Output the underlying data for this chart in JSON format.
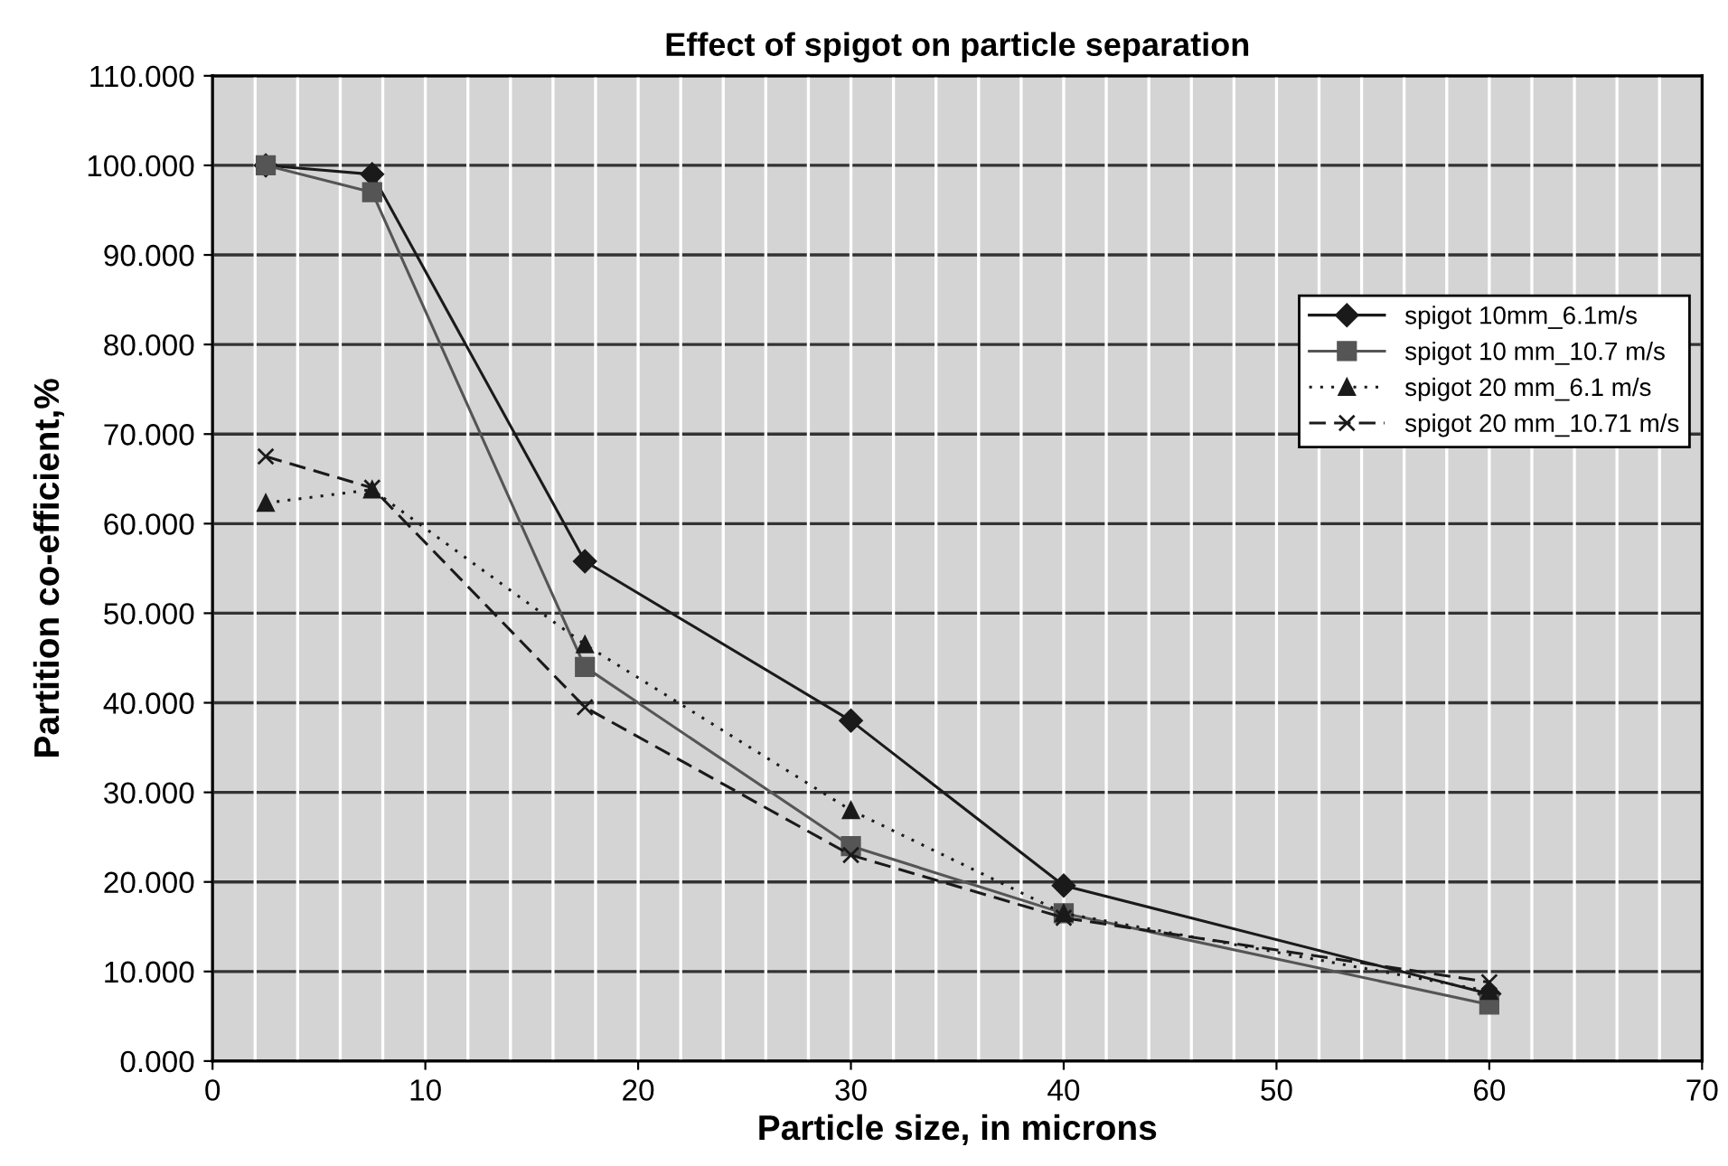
{
  "chart_data": {
    "type": "line",
    "title": "Effect of spigot on particle separation",
    "xlabel": "Particle size, in microns",
    "ylabel": "Partition co-efficient,%",
    "xlim": [
      0,
      70
    ],
    "xticks": [
      0,
      {
        "value": 2,
        "label": null
      },
      {
        "value": 4,
        "label": null
      },
      {
        "value": 6,
        "label": null
      },
      {
        "value": 8,
        "label": null
      },
      10,
      {
        "value": 12,
        "label": null
      },
      {
        "value": 14,
        "label": null
      },
      {
        "value": 16,
        "label": null
      },
      {
        "value": 18,
        "label": null
      },
      20,
      {
        "value": 22,
        "label": null
      },
      {
        "value": 24,
        "label": null
      },
      {
        "value": 26,
        "label": null
      },
      {
        "value": 28,
        "label": null
      },
      30,
      {
        "value": 32,
        "label": null
      },
      {
        "value": 34,
        "label": null
      },
      {
        "value": 36,
        "label": null
      },
      {
        "value": 38,
        "label": null
      },
      40,
      {
        "value": 42,
        "label": null
      },
      {
        "value": 44,
        "label": null
      },
      {
        "value": 46,
        "label": null
      },
      {
        "value": 48,
        "label": null
      },
      50,
      {
        "value": 52,
        "label": null
      },
      {
        "value": 54,
        "label": null
      },
      {
        "value": 56,
        "label": null
      },
      {
        "value": 58,
        "label": null
      },
      60,
      {
        "value": 62,
        "label": null
      },
      {
        "value": 64,
        "label": null
      },
      {
        "value": 66,
        "label": null
      },
      {
        "value": 68,
        "label": null
      },
      70
    ],
    "ylim": [
      0,
      110
    ],
    "yticks": [
      {
        "value": 0,
        "label": "0.000"
      },
      {
        "value": 10,
        "label": "10.000"
      },
      {
        "value": 20,
        "label": "20.000"
      },
      {
        "value": 30,
        "label": "30.000"
      },
      {
        "value": 40,
        "label": "40.000"
      },
      {
        "value": 50,
        "label": "50.000"
      },
      {
        "value": 60,
        "label": "60.000"
      },
      {
        "value": 70,
        "label": "70.000"
      },
      {
        "value": 80,
        "label": "80.000"
      },
      {
        "value": 90,
        "label": "90.000"
      },
      {
        "value": 100,
        "label": "100.000"
      },
      {
        "value": 110,
        "label": "110.000"
      }
    ],
    "grid": true,
    "legend": "right",
    "x": [
      2.5,
      7.5,
      17.5,
      30,
      40,
      60
    ],
    "series": [
      {
        "name": "spigot 10mm_6.1m/s",
        "color": "#1a1a1a",
        "marker": "diamond",
        "line_style": "solid",
        "values": [
          100,
          99,
          55.8,
          38,
          19.6,
          7.5
        ]
      },
      {
        "name": "spigot 10 mm_10.7 m/s",
        "color": "#555555",
        "marker": "square",
        "line_style": "solid",
        "values": [
          100,
          97,
          44,
          24,
          16.5,
          6.3
        ]
      },
      {
        "name": "spigot 20 mm_6.1 m/s",
        "color": "#1a1a1a",
        "marker": "triangle",
        "line_style": "dotted",
        "values": [
          62.3,
          63.8,
          46.5,
          28,
          16.5,
          7.8
        ]
      },
      {
        "name": "spigot 20 mm_10.71 m/s",
        "color": "#1a1a1a",
        "marker": "cross",
        "line_style": "dashed",
        "values": [
          67.5,
          64,
          39.5,
          23,
          16,
          8.8
        ]
      }
    ]
  }
}
